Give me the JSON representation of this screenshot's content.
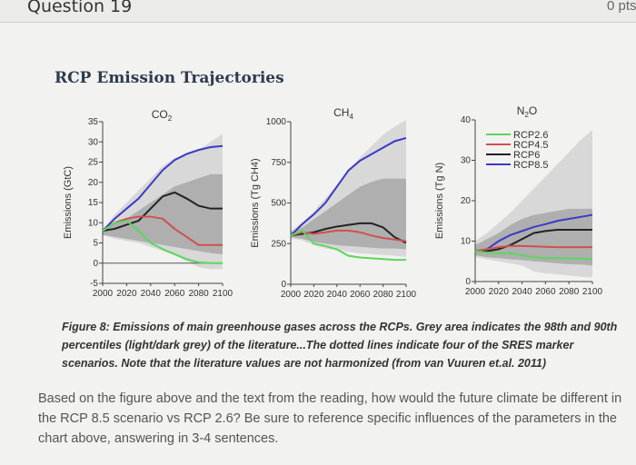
{
  "header": {
    "question_label": "Question 19",
    "points_label": "0 pts"
  },
  "figure_title": "RCP Emission Trajectories",
  "caption": "Figure 8: Emissions of main greenhouse gases across the RCPs. Grey area indicates the 98th and 90th percentiles (light/dark grey) of the literature...The dotted lines indicate four of the SRES marker scenarios. Note that the literature values are not harmonized (from van Vuuren et.al. 2011)",
  "question_text": "Based on the figure above and the text from the reading, how would the future climate be different in the RCP 8.5 scenario vs RCP 2.6? Be sure to reference specific influences of the parameters in the chart above, answering in 3-4 sentences.",
  "colors": {
    "RCP2.6": "#5cd65c",
    "RCP4.5": "#d05050",
    "RCP6": "#222222",
    "RCP8.5": "#3a3ac8",
    "band_light": "#d4d4d4",
    "band_dark": "#a8a8a8"
  },
  "chart_data": [
    {
      "type": "line",
      "title": "CO2",
      "title_main": "CO",
      "title_sub": "2",
      "ylabel": "Emissions (GtC)",
      "xlabel": "",
      "x": [
        2000,
        2010,
        2020,
        2030,
        2040,
        2050,
        2060,
        2070,
        2080,
        2090,
        2100
      ],
      "xticks": [
        "2000",
        "2020",
        "2040",
        "2060",
        "2080",
        "2100"
      ],
      "yticks": [
        "-5",
        "0",
        "5",
        "10",
        "15",
        "20",
        "25",
        "30",
        "35"
      ],
      "xlim": [
        2000,
        2100
      ],
      "ylim": [
        -5,
        35
      ],
      "zero_line": true,
      "bands": [
        {
          "level": "98th percentile",
          "upper": [
            8,
            12,
            15,
            18,
            21,
            24,
            26,
            27,
            28,
            30,
            32
          ],
          "lower": [
            7,
            6,
            5.5,
            5,
            4,
            3,
            2,
            0.5,
            -1,
            -1.5,
            -1.5
          ]
        },
        {
          "level": "90th percentile",
          "upper": [
            8,
            10,
            11,
            13,
            15,
            17,
            19,
            20,
            21,
            22,
            22
          ],
          "lower": [
            7,
            6.5,
            6,
            5.5,
            5,
            4.5,
            4,
            3.5,
            3,
            2.5,
            2.2
          ]
        }
      ],
      "series": [
        {
          "name": "RCP8.5",
          "values": [
            8,
            11,
            13.5,
            16,
            19.5,
            23,
            25.5,
            27,
            28,
            28.7,
            29
          ]
        },
        {
          "name": "RCP6",
          "values": [
            8,
            8.5,
            9.5,
            10.5,
            13.5,
            16.5,
            17.5,
            16,
            14.2,
            13.5,
            13.5
          ]
        },
        {
          "name": "RCP4.5",
          "values": [
            8,
            10,
            11,
            11.5,
            11.5,
            11,
            8.5,
            6.5,
            4.5,
            4.5,
            4.5
          ]
        },
        {
          "name": "RCP2.6",
          "values": [
            8,
            10,
            10.5,
            8,
            5,
            3.5,
            2.2,
            1,
            0.2,
            0,
            0
          ]
        }
      ]
    },
    {
      "type": "line",
      "title": "CH4",
      "title_main": "CH",
      "title_sub": "4",
      "ylabel": "Emissions (Tg CH4)",
      "xlabel": "",
      "x": [
        2000,
        2010,
        2020,
        2030,
        2040,
        2050,
        2060,
        2070,
        2080,
        2090,
        2100
      ],
      "xticks": [
        "2000",
        "2020",
        "2040",
        "2060",
        "2080",
        "2100"
      ],
      "yticks": [
        "0",
        "250",
        "500",
        "750",
        "1000"
      ],
      "xlim": [
        2000,
        2100
      ],
      "ylim": [
        0,
        1000
      ],
      "bands": [
        {
          "level": "98th percentile",
          "upper": [
            330,
            380,
            450,
            530,
            610,
            700,
            780,
            850,
            920,
            970,
            1010
          ],
          "lower": [
            280,
            270,
            240,
            220,
            210,
            200,
            190,
            185,
            180,
            175,
            170
          ]
        },
        {
          "level": "90th percentile",
          "upper": [
            320,
            350,
            400,
            450,
            500,
            550,
            600,
            630,
            650,
            650,
            650
          ],
          "lower": [
            290,
            280,
            260,
            250,
            240,
            235,
            230,
            225,
            220,
            220,
            215
          ]
        }
      ],
      "series": [
        {
          "name": "RCP8.5",
          "values": [
            300,
            370,
            430,
            500,
            600,
            700,
            760,
            800,
            840,
            880,
            900
          ]
        },
        {
          "name": "RCP6",
          "values": [
            300,
            310,
            320,
            340,
            355,
            365,
            375,
            375,
            350,
            290,
            255
          ]
        },
        {
          "name": "RCP4.5",
          "values": [
            300,
            320,
            310,
            320,
            330,
            330,
            320,
            300,
            285,
            275,
            265
          ]
        },
        {
          "name": "RCP2.6",
          "values": [
            300,
            330,
            250,
            235,
            215,
            175,
            165,
            160,
            155,
            150,
            150
          ]
        }
      ]
    },
    {
      "type": "line",
      "title": "N2O",
      "title_main": "N",
      "title_sub": "2",
      "title_end": "O",
      "ylabel": "Emissions (Tg N)",
      "xlabel": "",
      "x": [
        2000,
        2010,
        2020,
        2030,
        2040,
        2050,
        2060,
        2070,
        2080,
        2090,
        2100
      ],
      "xticks": [
        "2000",
        "2020",
        "2040",
        "2060",
        "2080",
        "2100"
      ],
      "yticks": [
        "0",
        "10",
        "20",
        "30",
        "40"
      ],
      "xlim": [
        2000,
        2100
      ],
      "ylim": [
        0,
        40
      ],
      "legend": {
        "placement": "top-left",
        "entries": [
          "RCP2.6",
          "RCP4.5",
          "RCP6",
          "RCP8.5"
        ]
      },
      "bands": [
        {
          "level": "98th percentile",
          "upper": [
            10,
            12,
            14.5,
            17,
            20,
            23,
            26,
            29,
            32,
            35,
            37.5
          ],
          "lower": [
            6,
            5.5,
            5,
            4.5,
            4,
            2.5,
            2,
            1.8,
            1.5,
            1.2,
            1
          ]
        },
        {
          "level": "90th percentile",
          "upper": [
            9,
            10.5,
            12,
            14,
            15.5,
            16.5,
            17,
            17.5,
            18,
            18,
            18
          ],
          "lower": [
            6.5,
            6,
            5.8,
            5.5,
            5.3,
            5,
            4.8,
            4.5,
            4.3,
            4.2,
            4
          ]
        }
      ],
      "series": [
        {
          "name": "RCP8.5",
          "values": [
            7.5,
            8,
            10,
            11.5,
            12.5,
            13.5,
            14.2,
            15,
            15.5,
            16,
            16.5
          ]
        },
        {
          "name": "RCP6",
          "values": [
            7.5,
            7.5,
            8,
            9,
            10.5,
            12,
            12.5,
            12.8,
            12.8,
            12.8,
            12.8
          ]
        },
        {
          "name": "RCP4.5",
          "values": [
            7.5,
            8,
            8.5,
            8.8,
            8.8,
            8.7,
            8.6,
            8.5,
            8.5,
            8.5,
            8.5
          ]
        },
        {
          "name": "RCP2.6",
          "values": [
            7.5,
            7.2,
            7,
            7,
            6.5,
            6,
            5.8,
            5.8,
            5.7,
            5.7,
            5.5
          ]
        }
      ]
    }
  ]
}
